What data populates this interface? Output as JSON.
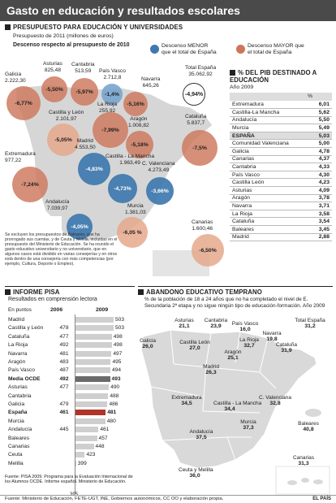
{
  "title": "Gasto en educación y resultados escolares",
  "budget_section": {
    "heading": "PRESUPUESTO PARA EDUCACIÓN Y UNIVERSIDADES",
    "subtitle": "Presupuesto de 2011 (millones de euros)",
    "drop_label": "Descenso respecto al presupuesto de 2010",
    "legend_less": "Descenso MENOR que el total de España",
    "legend_more": "Descenso MAYOR que el total de España",
    "total_label": "Total España",
    "total_value": "35.062,92",
    "total_pct": "-4,94%",
    "note": "Se excluyen los presupuestos de Baleares, que ha prorrogado sus cuentas, y de Ceuta y Melilla, incluidas en el presupuesto del Ministerio de Educación. Se ha reunido el gasto educativo universitario y no universitario, que en algunos casos está dividido en varias consejerías y en otros está dentro de una consejería con más competencias (por ejemplo, Cultura, Deporte o Empleo).",
    "colors": {
      "less": "#3e78af",
      "more": "#cd765a"
    },
    "regions": [
      {
        "name": "Galicia",
        "budget": "2.222,30",
        "pct": "-6,77%",
        "kind": "more"
      },
      {
        "name": "Asturias",
        "budget": "825,48",
        "pct": "-5,50%",
        "kind": "more"
      },
      {
        "name": "Cantabria",
        "budget": "513,59",
        "pct": "-5,97%",
        "kind": "more"
      },
      {
        "name": "País Vasco",
        "budget": "2.712,8",
        "pct": "-1,4%",
        "kind": "less"
      },
      {
        "name": "Navarra",
        "budget": "645,26",
        "pct": "-5,16%",
        "kind": "more"
      },
      {
        "name": "La Rioja",
        "budget": "255,92",
        "pct": "-4,45%",
        "kind": "less"
      },
      {
        "name": "Aragón",
        "budget": "1.008,82",
        "pct": "-5,18%",
        "kind": "more"
      },
      {
        "name": "Castilla y León",
        "budget": "2.101,97",
        "pct": "-5,05%",
        "kind": "more"
      },
      {
        "name": "Cataluña",
        "budget": "5.837,7",
        "pct": "-7,5%",
        "kind": "more"
      },
      {
        "name": "Madrid",
        "budget": "4.553,50",
        "pct": "-4,83%",
        "kind": "less"
      },
      {
        "name": "Extremadura",
        "budget": "977,22",
        "pct": "-7,24%",
        "kind": "more"
      },
      {
        "name": "Castilla - La Mancha",
        "budget": "1.963,49",
        "pct": "-7,99%",
        "kind": "more"
      },
      {
        "name": "C. Valenciana",
        "budget": "4.273,49",
        "pct": "-3,66%",
        "kind": "less"
      },
      {
        "name": "Andalucía",
        "budget": "7.039,97",
        "pct": "-4,05%",
        "kind": "less"
      },
      {
        "name": "Murcia",
        "budget": "1.381,03",
        "pct": "-6,05 %",
        "kind": "more"
      },
      {
        "name": "Canarias",
        "budget": "1.600,46",
        "pct": "-6,50%",
        "kind": "more"
      }
    ]
  },
  "pib_section": {
    "heading": "% DEL PIB DESTINADO A EDUCACIÓN",
    "year": "Año 2009",
    "col_header": "%",
    "rows": [
      {
        "name": "Extremadura",
        "value": "6,01"
      },
      {
        "name": "Castilla-La Mancha",
        "value": "5,62"
      },
      {
        "name": "Andalucía",
        "value": "5,50"
      },
      {
        "name": "Murcia",
        "value": "5,49"
      },
      {
        "name": "ESPAÑA",
        "value": "5,03",
        "highlight": true
      },
      {
        "name": "Comunidad Valenciana",
        "value": "5,00"
      },
      {
        "name": "Galicia",
        "value": "4,78"
      },
      {
        "name": "Canarias",
        "value": "4,37"
      },
      {
        "name": "Cantabria",
        "value": "4,33"
      },
      {
        "name": "País Vasco",
        "value": "4,30"
      },
      {
        "name": "Castilla León",
        "value": "4,23"
      },
      {
        "name": "Asturias",
        "value": "4,09"
      },
      {
        "name": "Aragón",
        "value": "3,78"
      },
      {
        "name": "Navarra",
        "value": "3,71"
      },
      {
        "name": "La Rioja",
        "value": "3,58"
      },
      {
        "name": "Cataluña",
        "value": "3,54"
      },
      {
        "name": "Baleares",
        "value": "3,45"
      },
      {
        "name": "Madrid",
        "value": "2,88"
      }
    ]
  },
  "pisa_section": {
    "heading": "INFORME PISA",
    "subtitle": "Resultados en comprensión lectora",
    "unit": "En puntos",
    "col_2006": "2006",
    "col_2009": "2009",
    "axis_min_label": "395",
    "source": "Fuente: PISA 2009. Programa para la Evaluación Internacional de los Alumnos OCDE. Informe español. Ministerio de Educación."
  },
  "dropout_section": {
    "heading": "ABANDONO EDUCATIVO TEMPRANO",
    "subtitle": "% de la población de 18 a 24 años que no ha completado el nivel de E. Secundaria 2ª etapa y no sigue ningún tipo de educación-formación. Año 2009",
    "regions": [
      {
        "name": "Asturias",
        "value": "21,1"
      },
      {
        "name": "Cantabria",
        "value": "23,9"
      },
      {
        "name": "País Vasco",
        "value": "16,0"
      },
      {
        "name": "Navarra",
        "value": "19,8"
      },
      {
        "name": "Total España",
        "value": "31,2"
      },
      {
        "name": "Galicia",
        "value": "26,0"
      },
      {
        "name": "La Rioja",
        "value": "32,7"
      },
      {
        "name": "Castilla León",
        "value": "27,0"
      },
      {
        "name": "Aragón",
        "value": "25,1"
      },
      {
        "name": "Cataluña",
        "value": "31,9"
      },
      {
        "name": "Madrid",
        "value": "26,3"
      },
      {
        "name": "Extremadura",
        "value": "34,5"
      },
      {
        "name": "Castilla - La Mancha",
        "value": "34,4"
      },
      {
        "name": "C. Valenciana",
        "value": "32,8"
      },
      {
        "name": "Baleares",
        "value": "40,8"
      },
      {
        "name": "Murcia",
        "value": "37,3"
      },
      {
        "name": "Andalucía",
        "value": "37,5"
      },
      {
        "name": "Canarias",
        "value": "31,3"
      },
      {
        "name": "Ceuta y Melilla",
        "value": "36,0"
      }
    ]
  },
  "footer": {
    "source": "Fuente: Ministerio de Educación, FETE-UGT, INE, Gobiernos autonómicos, CC OO y elaboración propia.",
    "credit": "EL PAÍS"
  },
  "chart_data": {
    "type": "bar",
    "title": "INFORME PISA",
    "subtitle": "Resultados en comprensión lectora",
    "ylabel": "En puntos",
    "xlim": [
      395,
      503
    ],
    "highlight": {
      "España": "#b0342a",
      "Media OCDE": "#6a6a6a"
    },
    "categories": [
      "Madrid",
      "Castilla y León",
      "Cataluña",
      "La Rioja",
      "Navarra",
      "Aragón",
      "País Vasco",
      "Media OCDE",
      "Asturias",
      "Cantabria",
      "Galicia",
      "España",
      "Murcia",
      "Andalucía",
      "Baleares",
      "Canarias",
      "Ceuta",
      "Melilla"
    ],
    "series": [
      {
        "name": "2006",
        "values": [
          null,
          478,
          477,
          492,
          481,
          483,
          487,
          492,
          477,
          null,
          479,
          461,
          null,
          445,
          null,
          null,
          null,
          null
        ]
      },
      {
        "name": "2009",
        "values": [
          503,
          503,
          498,
          498,
          497,
          495,
          494,
          493,
          490,
          488,
          486,
          481,
          480,
          461,
          457,
          448,
          423,
          399
        ]
      }
    ]
  }
}
